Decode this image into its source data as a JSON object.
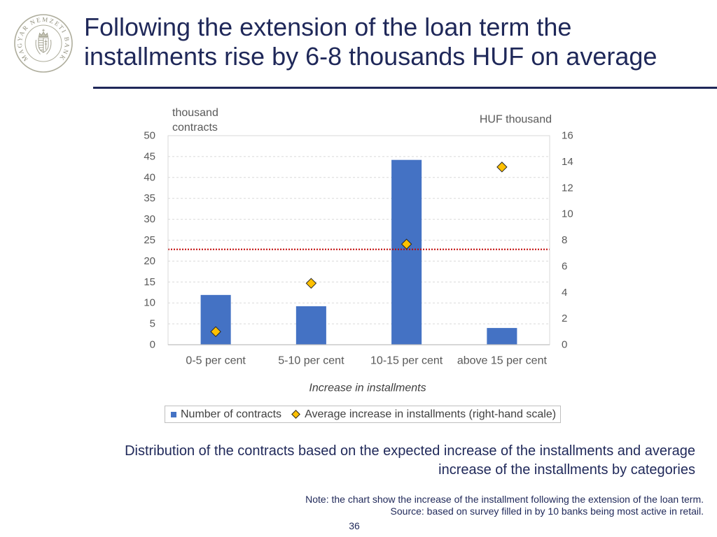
{
  "colors": {
    "navy": "#1F2859"
  },
  "logo": {
    "text": "MAGYAR NEMZETI BANK",
    "icon": "coat-of-arms-icon"
  },
  "header": {
    "title": "Following the extension of the loan term the\ninstallments rise by 6-8 thousands HUF on average"
  },
  "chart_data": {
    "type": "bar",
    "categories": [
      "0-5 per cent",
      "5-10 per cent",
      "10-15 per cent",
      "above 15 per cent"
    ],
    "series": [
      {
        "name": "Number of contracts",
        "type": "bar",
        "axis": "left",
        "color": "#4472C4",
        "values": [
          11.9,
          9.2,
          44.2,
          4.0
        ]
      },
      {
        "name": "Average increase in installments (right-hand scale)",
        "type": "scatter",
        "marker": "diamond",
        "axis": "right",
        "color": "#FFC000",
        "values": [
          1.0,
          4.7,
          7.7,
          13.6
        ]
      }
    ],
    "reference_line": {
      "axis": "right",
      "value": 7.3,
      "color": "#C00000",
      "style": "dotted"
    },
    "xlabel": "Increase in installments",
    "ylabel": "thousand contracts",
    "y2label": "HUF thousand",
    "ylim": [
      0,
      50
    ],
    "y2lim": [
      0,
      16
    ],
    "yticks": [
      0,
      5,
      10,
      15,
      20,
      25,
      30,
      35,
      40,
      45,
      50
    ],
    "y2ticks": [
      0,
      2,
      4,
      6,
      8,
      10,
      12,
      14,
      16
    ],
    "grid": true,
    "legend": "bottom"
  },
  "caption": "Distribution of the contracts based on the expected increase of the installments and average\nincrease of the installments by categories",
  "footer": {
    "note": "Note: the chart show the increase of the installment following the extension of the loan term.",
    "source": "Source: based on survey filled in by 10 banks being most active in retail.",
    "page_number": "36"
  }
}
